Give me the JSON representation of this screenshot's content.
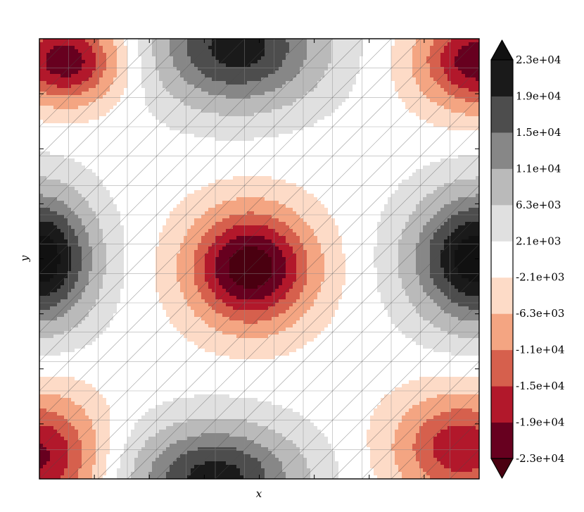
{
  "chart_data": {
    "type": "contourf",
    "xlabel": "x",
    "ylabel": "y",
    "grid": true,
    "hatching": "diagonal",
    "colorbar": {
      "orientation": "vertical",
      "placement": "right",
      "extend": "both",
      "tick_labels": [
        "2.3e+04",
        "1.9e+04",
        "1.5e+04",
        "1.1e+04",
        "6.3e+03",
        "2.1e+03",
        "-2.1e+03",
        "-6.3e+03",
        "-1.1e+04",
        "-1.5e+04",
        "-1.9e+04",
        "-2.3e+04"
      ],
      "levels": [
        -23000,
        -19000,
        -15000,
        -11000,
        -6300,
        -2100,
        2100,
        6300,
        11000,
        15000,
        19000,
        23000
      ],
      "colors": [
        "#67001f",
        "#b2182b",
        "#d6604d",
        "#f4a582",
        "#fddbc7",
        "#ffffff",
        "#e0e0e0",
        "#bababa",
        "#878787",
        "#4d4d4d",
        "#1a1a1a"
      ],
      "extend_low_color": "#4a0010",
      "extend_high_color": "#111111"
    },
    "field": {
      "kind": "sum_of_gaussians",
      "extent": [
        0,
        1,
        0,
        1
      ],
      "components": [
        {
          "x": 0.48,
          "y": 0.48,
          "amp": -26000,
          "sx": 0.1,
          "sy": 0.095
        },
        {
          "x": 0.0,
          "y": 0.5,
          "amp": 26000,
          "sx": 0.09,
          "sy": 0.11
        },
        {
          "x": 1.0,
          "y": 0.5,
          "amp": 26000,
          "sx": 0.11,
          "sy": 0.11
        },
        {
          "x": 0.45,
          "y": 0.98,
          "amp": 21000,
          "sx": 0.14,
          "sy": 0.1
        },
        {
          "x": 0.4,
          "y": 0.0,
          "amp": 21000,
          "sx": 0.14,
          "sy": 0.09
        },
        {
          "x": 0.06,
          "y": 0.95,
          "amp": -22000,
          "sx": 0.09,
          "sy": 0.07
        },
        {
          "x": 1.0,
          "y": 0.95,
          "amp": -22000,
          "sx": 0.1,
          "sy": 0.08
        },
        {
          "x": 0.0,
          "y": 0.05,
          "amp": -20000,
          "sx": 0.1,
          "sy": 0.1
        },
        {
          "x": 0.96,
          "y": 0.07,
          "amp": -18000,
          "sx": 0.11,
          "sy": 0.09
        }
      ]
    }
  }
}
